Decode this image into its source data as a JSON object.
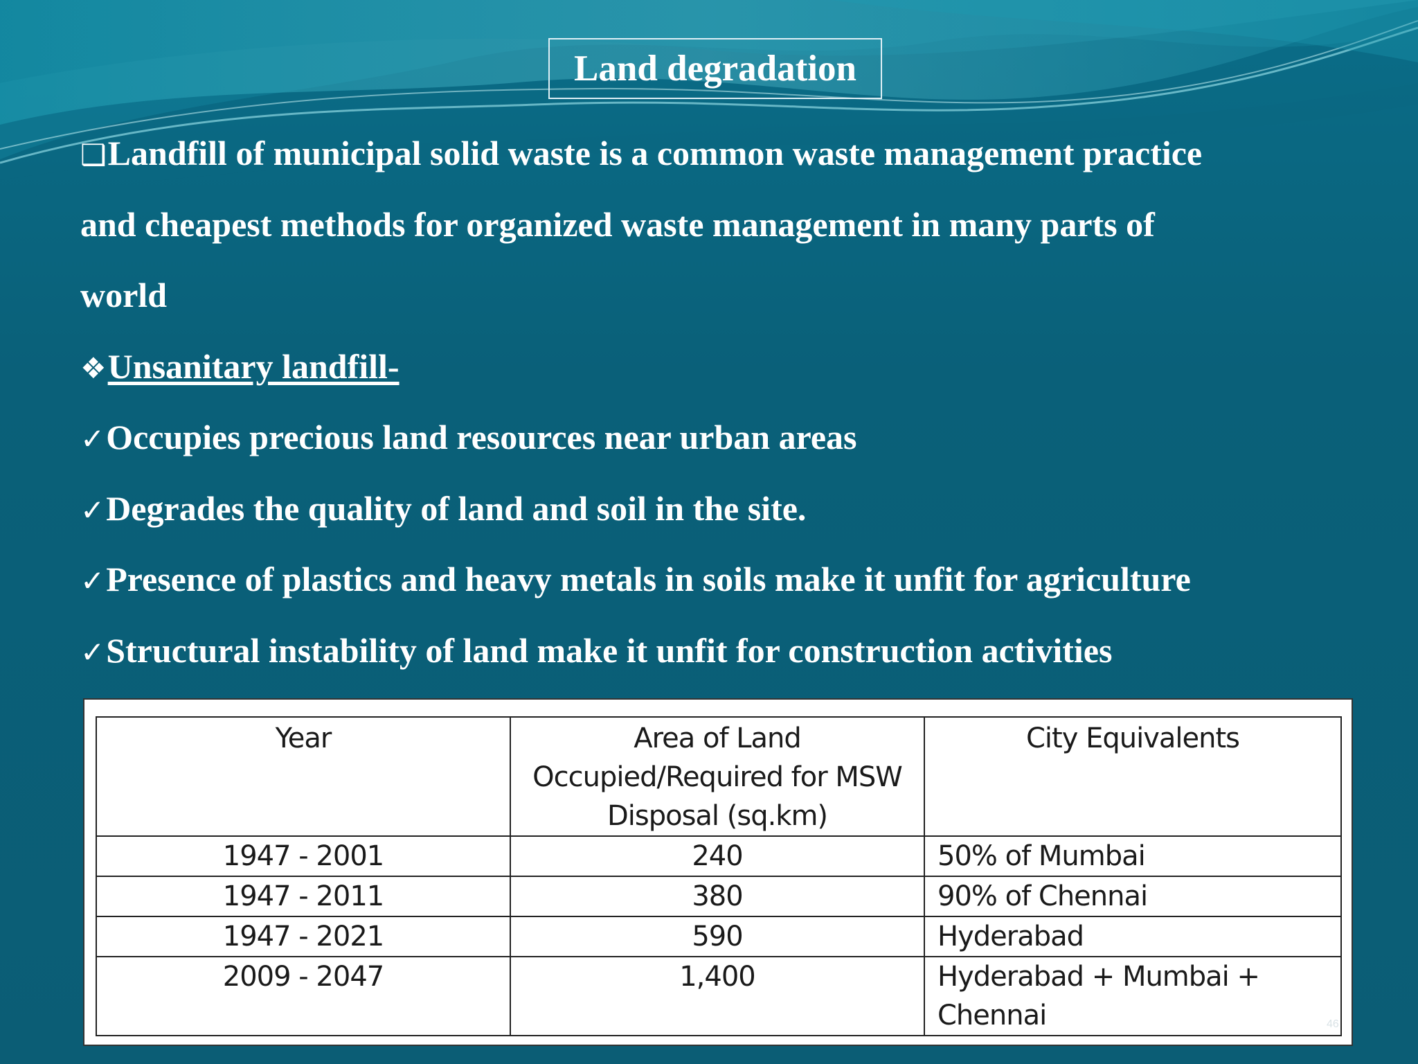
{
  "title": "Land degradation",
  "bullets": [
    {
      "marker": "❑",
      "lines": [
        "Landfill of municipal solid waste is a common waste management practice",
        "and  cheapest methods for organized waste management in many parts of",
        "world"
      ]
    },
    {
      "marker": "❖",
      "text": "Unsanitary landfill-",
      "underline": true
    },
    {
      "marker": "✓",
      "text": "Occupies precious land resources near urban areas"
    },
    {
      "marker": "✓",
      "text": "Degrades the quality of land and soil in the site."
    },
    {
      "marker": "✓",
      "text": "Presence of plastics and heavy metals in soils make it unfit for agriculture"
    },
    {
      "marker": "✓",
      "text": "Structural instability of  land make it unfit for construction activities"
    }
  ],
  "table": {
    "headers": [
      "Year",
      "Area of Land Occupied/Required for MSW Disposal (sq.km)",
      "City Equivalents"
    ],
    "header_lines": [
      [
        "Year"
      ],
      [
        "Area of Land",
        "Occupied/Required for MSW",
        "Disposal (sq.km)"
      ],
      [
        "City Equivalents"
      ]
    ],
    "rows": [
      {
        "year": "1947 - 2001",
        "area": "240",
        "city": "50% of Mumbai",
        "city_lines": [
          "50% of Mumbai"
        ]
      },
      {
        "year": "1947 - 2011",
        "area": "380",
        "city": "90% of Chennai",
        "city_lines": [
          "90% of Chennai"
        ]
      },
      {
        "year": "1947 - 2021",
        "area": "590",
        "city": "Hyderabad",
        "city_lines": [
          "Hyderabad"
        ]
      },
      {
        "year": "2009 - 2047",
        "area": "1,400",
        "city": "Hyderabad + Mumbai + Chennai",
        "city_lines": [
          "Hyderabad + Mumbai +",
          "Chennai"
        ]
      }
    ]
  },
  "page_number": "46",
  "colors": {
    "background": "#0b5f78",
    "text": "#ffffff",
    "table_background": "#ffffff",
    "table_text": "#1a1a1a"
  }
}
